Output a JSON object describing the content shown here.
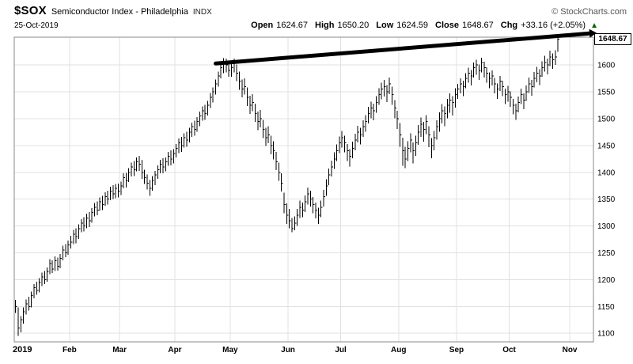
{
  "header": {
    "symbol": "$SOX",
    "name": "Semiconductor Index - Philadelphia",
    "exchange": "INDX",
    "copyright": "© StockCharts.com",
    "date": "25-Oct-2019",
    "quote": {
      "pairs": [
        {
          "label": "Open",
          "value": "1624.67"
        },
        {
          "label": "High",
          "value": "1650.20"
        },
        {
          "label": "Low",
          "value": "1624.59"
        },
        {
          "label": "Close",
          "value": "1648.67"
        },
        {
          "label": "Chg",
          "value": "+33.16 (+2.05%)"
        }
      ],
      "up_arrow": "▲",
      "up_arrow_color": "#006600"
    }
  },
  "chart_data": {
    "type": "ohlc-bar",
    "title": "$SOX Semiconductor Index - Philadelphia INDX",
    "timeframe_note": "daily bars, Jan 2019 - 25 Oct 2019",
    "last_bar": {
      "date": "25-Oct-2019",
      "open": 1624.67,
      "high": 1650.2,
      "low": 1624.59,
      "close": 1648.67,
      "chg": "+33.16 (+2.05%)"
    },
    "x_axis": {
      "total_slots": 220,
      "months": [
        {
          "label": "2019",
          "index": 0
        },
        {
          "label": "Feb",
          "index": 21
        },
        {
          "label": "Mar",
          "index": 40
        },
        {
          "label": "Apr",
          "index": 61
        },
        {
          "label": "May",
          "index": 82
        },
        {
          "label": "Jun",
          "index": 104
        },
        {
          "label": "Jul",
          "index": 124
        },
        {
          "label": "Aug",
          "index": 146
        },
        {
          "label": "Sep",
          "index": 168
        },
        {
          "label": "Oct",
          "index": 188
        },
        {
          "label": "Nov",
          "index": 211
        }
      ]
    },
    "y_axis": {
      "ticks": [
        1100,
        1150,
        1200,
        1250,
        1300,
        1350,
        1400,
        1450,
        1500,
        1550,
        1600
      ],
      "range": [
        1084,
        1652
      ],
      "last_price": 1648.67,
      "last_price_label": "1648.67"
    },
    "trendline": {
      "from_index": 76,
      "from_price": 1603,
      "to_index": 218,
      "to_price": 1659,
      "color": "#000000",
      "width": 5
    },
    "grid": true,
    "legend": "none",
    "colors": {
      "bar": "#000000",
      "grid": "#e0e0e0",
      "border": "#888888",
      "label": "#000000"
    },
    "bars_format": [
      "high",
      "low",
      "close"
    ],
    "bars": [
      [
        1162,
        1138,
        1150
      ],
      [
        1148,
        1095,
        1110
      ],
      [
        1132,
        1102,
        1125
      ],
      [
        1148,
        1118,
        1140
      ],
      [
        1163,
        1135,
        1155
      ],
      [
        1168,
        1142,
        1150
      ],
      [
        1178,
        1148,
        1170
      ],
      [
        1192,
        1165,
        1185
      ],
      [
        1196,
        1172,
        1180
      ],
      [
        1203,
        1176,
        1195
      ],
      [
        1213,
        1188,
        1205
      ],
      [
        1216,
        1192,
        1200
      ],
      [
        1223,
        1196,
        1215
      ],
      [
        1238,
        1210,
        1230
      ],
      [
        1236,
        1212,
        1220
      ],
      [
        1243,
        1216,
        1235
      ],
      [
        1241,
        1217,
        1225
      ],
      [
        1248,
        1221,
        1240
      ],
      [
        1263,
        1236,
        1255
      ],
      [
        1266,
        1242,
        1250
      ],
      [
        1273,
        1246,
        1265
      ],
      [
        1282,
        1258,
        1270
      ],
      [
        1293,
        1266,
        1285
      ],
      [
        1296,
        1268,
        1280
      ],
      [
        1303,
        1276,
        1295
      ],
      [
        1313,
        1288,
        1305
      ],
      [
        1316,
        1290,
        1300
      ],
      [
        1323,
        1296,
        1315
      ],
      [
        1326,
        1298,
        1310
      ],
      [
        1333,
        1306,
        1325
      ],
      [
        1343,
        1318,
        1335
      ],
      [
        1346,
        1320,
        1330
      ],
      [
        1353,
        1328,
        1345
      ],
      [
        1356,
        1330,
        1340
      ],
      [
        1363,
        1338,
        1355
      ],
      [
        1366,
        1340,
        1350
      ],
      [
        1373,
        1348,
        1365
      ],
      [
        1376,
        1350,
        1360
      ],
      [
        1378,
        1352,
        1370
      ],
      [
        1379,
        1353,
        1365
      ],
      [
        1383,
        1358,
        1375
      ],
      [
        1398,
        1370,
        1390
      ],
      [
        1399,
        1372,
        1385
      ],
      [
        1408,
        1382,
        1400
      ],
      [
        1418,
        1392,
        1410
      ],
      [
        1421,
        1393,
        1405
      ],
      [
        1428,
        1402,
        1420
      ],
      [
        1431,
        1403,
        1415
      ],
      [
        1423,
        1388,
        1400
      ],
      [
        1405,
        1378,
        1390
      ],
      [
        1396,
        1368,
        1380
      ],
      [
        1386,
        1356,
        1370
      ],
      [
        1393,
        1366,
        1385
      ],
      [
        1403,
        1376,
        1395
      ],
      [
        1413,
        1388,
        1405
      ],
      [
        1423,
        1398,
        1415
      ],
      [
        1426,
        1398,
        1410
      ],
      [
        1428,
        1402,
        1420
      ],
      [
        1438,
        1412,
        1430
      ],
      [
        1441,
        1413,
        1425
      ],
      [
        1443,
        1417,
        1435
      ],
      [
        1453,
        1428,
        1445
      ],
      [
        1463,
        1436,
        1455
      ],
      [
        1466,
        1438,
        1450
      ],
      [
        1473,
        1446,
        1465
      ],
      [
        1476,
        1448,
        1460
      ],
      [
        1483,
        1456,
        1475
      ],
      [
        1493,
        1466,
        1485
      ],
      [
        1496,
        1468,
        1480
      ],
      [
        1503,
        1476,
        1495
      ],
      [
        1513,
        1486,
        1505
      ],
      [
        1523,
        1496,
        1515
      ],
      [
        1526,
        1498,
        1510
      ],
      [
        1533,
        1506,
        1525
      ],
      [
        1548,
        1520,
        1540
      ],
      [
        1558,
        1530,
        1550
      ],
      [
        1573,
        1545,
        1565
      ],
      [
        1588,
        1560,
        1580
      ],
      [
        1603,
        1575,
        1595
      ],
      [
        1613,
        1585,
        1605
      ],
      [
        1612,
        1586,
        1600
      ],
      [
        1606,
        1578,
        1590
      ],
      [
        1603,
        1578,
        1595
      ],
      [
        1612,
        1586,
        1605
      ],
      [
        1601,
        1570,
        1585
      ],
      [
        1588,
        1554,
        1570
      ],
      [
        1573,
        1540,
        1555
      ],
      [
        1575,
        1545,
        1560
      ],
      [
        1558,
        1524,
        1540
      ],
      [
        1543,
        1509,
        1525
      ],
      [
        1546,
        1514,
        1530
      ],
      [
        1528,
        1494,
        1510
      ],
      [
        1513,
        1479,
        1495
      ],
      [
        1516,
        1484,
        1500
      ],
      [
        1498,
        1464,
        1480
      ],
      [
        1483,
        1449,
        1465
      ],
      [
        1486,
        1454,
        1470
      ],
      [
        1468,
        1434,
        1450
      ],
      [
        1458,
        1424,
        1440
      ],
      [
        1438,
        1404,
        1420
      ],
      [
        1418,
        1384,
        1400
      ],
      [
        1398,
        1364,
        1380
      ],
      [
        1362,
        1324,
        1340
      ],
      [
        1342,
        1304,
        1320
      ],
      [
        1332,
        1296,
        1310
      ],
      [
        1315,
        1288,
        1295
      ],
      [
        1318,
        1292,
        1305
      ],
      [
        1332,
        1300,
        1320
      ],
      [
        1347,
        1315,
        1335
      ],
      [
        1344,
        1316,
        1330
      ],
      [
        1357,
        1326,
        1345
      ],
      [
        1372,
        1340,
        1360
      ],
      [
        1366,
        1336,
        1350
      ],
      [
        1354,
        1324,
        1340
      ],
      [
        1344,
        1314,
        1330
      ],
      [
        1334,
        1304,
        1320
      ],
      [
        1347,
        1316,
        1335
      ],
      [
        1367,
        1336,
        1355
      ],
      [
        1387,
        1356,
        1375
      ],
      [
        1407,
        1376,
        1395
      ],
      [
        1422,
        1392,
        1410
      ],
      [
        1437,
        1406,
        1425
      ],
      [
        1452,
        1421,
        1440
      ],
      [
        1467,
        1436,
        1455
      ],
      [
        1477,
        1446,
        1465
      ],
      [
        1468,
        1437,
        1455
      ],
      [
        1453,
        1421,
        1440
      ],
      [
        1443,
        1411,
        1430
      ],
      [
        1457,
        1426,
        1445
      ],
      [
        1472,
        1441,
        1460
      ],
      [
        1487,
        1456,
        1475
      ],
      [
        1483,
        1452,
        1470
      ],
      [
        1497,
        1466,
        1485
      ],
      [
        1507,
        1476,
        1495
      ],
      [
        1522,
        1491,
        1510
      ],
      [
        1532,
        1501,
        1520
      ],
      [
        1528,
        1497,
        1515
      ],
      [
        1542,
        1511,
        1530
      ],
      [
        1557,
        1526,
        1545
      ],
      [
        1567,
        1536,
        1555
      ],
      [
        1572,
        1541,
        1560
      ],
      [
        1563,
        1531,
        1550
      ],
      [
        1577,
        1546,
        1565
      ],
      [
        1560,
        1526,
        1545
      ],
      [
        1535,
        1501,
        1520
      ],
      [
        1515,
        1481,
        1500
      ],
      [
        1492,
        1448,
        1470
      ],
      [
        1465,
        1412,
        1440
      ],
      [
        1448,
        1408,
        1425
      ],
      [
        1458,
        1421,
        1445
      ],
      [
        1473,
        1437,
        1460
      ],
      [
        1456,
        1417,
        1440
      ],
      [
        1468,
        1431,
        1455
      ],
      [
        1488,
        1451,
        1475
      ],
      [
        1502,
        1466,
        1490
      ],
      [
        1494,
        1457,
        1480
      ],
      [
        1507,
        1471,
        1495
      ],
      [
        1486,
        1447,
        1470
      ],
      [
        1464,
        1426,
        1450
      ],
      [
        1477,
        1441,
        1465
      ],
      [
        1497,
        1461,
        1485
      ],
      [
        1512,
        1476,
        1500
      ],
      [
        1527,
        1491,
        1515
      ],
      [
        1523,
        1486,
        1510
      ],
      [
        1537,
        1501,
        1525
      ],
      [
        1547,
        1511,
        1535
      ],
      [
        1542,
        1506,
        1530
      ],
      [
        1557,
        1521,
        1545
      ],
      [
        1565,
        1537,
        1555
      ],
      [
        1575,
        1547,
        1565
      ],
      [
        1571,
        1542,
        1560
      ],
      [
        1585,
        1557,
        1575
      ],
      [
        1595,
        1567,
        1585
      ],
      [
        1591,
        1562,
        1580
      ],
      [
        1605,
        1577,
        1595
      ],
      [
        1610,
        1582,
        1600
      ],
      [
        1601,
        1572,
        1590
      ],
      [
        1614,
        1586,
        1605
      ],
      [
        1606,
        1577,
        1595
      ],
      [
        1596,
        1567,
        1585
      ],
      [
        1586,
        1557,
        1575
      ],
      [
        1590,
        1562,
        1580
      ],
      [
        1576,
        1547,
        1565
      ],
      [
        1566,
        1537,
        1555
      ],
      [
        1580,
        1552,
        1570
      ],
      [
        1571,
        1542,
        1560
      ],
      [
        1556,
        1527,
        1545
      ],
      [
        1561,
        1532,
        1550
      ],
      [
        1551,
        1522,
        1540
      ],
      [
        1537,
        1508,
        1525
      ],
      [
        1528,
        1498,
        1515
      ],
      [
        1541,
        1512,
        1530
      ],
      [
        1556,
        1527,
        1545
      ],
      [
        1547,
        1518,
        1535
      ],
      [
        1562,
        1533,
        1550
      ],
      [
        1577,
        1548,
        1565
      ],
      [
        1572,
        1543,
        1560
      ],
      [
        1587,
        1558,
        1575
      ],
      [
        1597,
        1568,
        1585
      ],
      [
        1592,
        1563,
        1580
      ],
      [
        1607,
        1578,
        1595
      ],
      [
        1617,
        1588,
        1605
      ],
      [
        1612,
        1583,
        1600
      ],
      [
        1627,
        1598,
        1615
      ],
      [
        1622,
        1593,
        1610
      ],
      [
        1628,
        1600,
        1615
      ],
      [
        1650.2,
        1624.59,
        1648.67
      ]
    ]
  }
}
